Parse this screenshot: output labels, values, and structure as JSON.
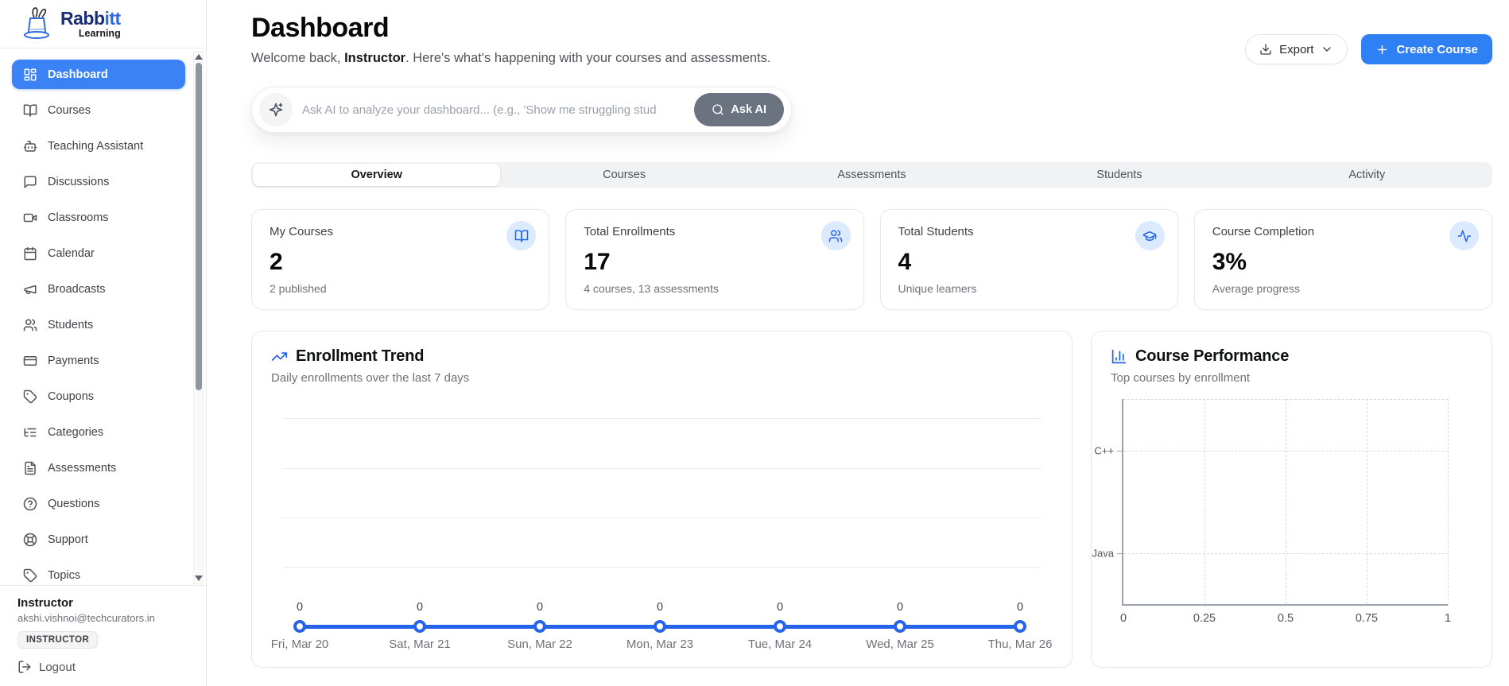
{
  "brand": {
    "name_primary": "Rabb",
    "name_secondary": "itt",
    "tagline": "Learning"
  },
  "sidebar": {
    "items": [
      {
        "label": "Dashboard",
        "icon": "layout-dashboard",
        "active": true
      },
      {
        "label": "Courses",
        "icon": "book-open",
        "active": false
      },
      {
        "label": "Teaching Assistant",
        "icon": "bot",
        "active": false
      },
      {
        "label": "Discussions",
        "icon": "message-square",
        "active": false
      },
      {
        "label": "Classrooms",
        "icon": "video",
        "active": false
      },
      {
        "label": "Calendar",
        "icon": "calendar",
        "active": false
      },
      {
        "label": "Broadcasts",
        "icon": "megaphone",
        "active": false
      },
      {
        "label": "Students",
        "icon": "users",
        "active": false
      },
      {
        "label": "Payments",
        "icon": "credit-card",
        "active": false
      },
      {
        "label": "Coupons",
        "icon": "tag",
        "active": false
      },
      {
        "label": "Categories",
        "icon": "list-tree",
        "active": false
      },
      {
        "label": "Assessments",
        "icon": "file-text",
        "active": false
      },
      {
        "label": "Questions",
        "icon": "help-circle",
        "active": false
      },
      {
        "label": "Support",
        "icon": "life-buoy",
        "active": false
      },
      {
        "label": "Topics",
        "icon": "tag",
        "active": false
      }
    ],
    "user": {
      "name": "Instructor",
      "email": "akshi.vishnoi@techcurators.in",
      "role_badge": "INSTRUCTOR",
      "logout_label": "Logout"
    }
  },
  "header": {
    "title": "Dashboard",
    "welcome_prefix": "Welcome back, ",
    "welcome_name": "Instructor",
    "welcome_suffix": ". Here's what's happening with your courses and assessments.",
    "export_label": "Export",
    "create_course_label": "Create Course"
  },
  "ask_ai": {
    "placeholder": "Ask AI to analyze your dashboard... (e.g., 'Show me struggling stud",
    "button_label": "Ask AI"
  },
  "tabs": [
    {
      "label": "Overview",
      "active": true
    },
    {
      "label": "Courses",
      "active": false
    },
    {
      "label": "Assessments",
      "active": false
    },
    {
      "label": "Students",
      "active": false
    },
    {
      "label": "Activity",
      "active": false
    }
  ],
  "stats": [
    {
      "title": "My Courses",
      "value": "2",
      "subtitle": "2 published",
      "icon": "book-open"
    },
    {
      "title": "Total Enrollments",
      "value": "17",
      "subtitle": "4 courses, 13 assessments",
      "icon": "users"
    },
    {
      "title": "Total Students",
      "value": "4",
      "subtitle": "Unique learners",
      "icon": "graduation-cap"
    },
    {
      "title": "Course Completion",
      "value": "3%",
      "subtitle": "Average progress",
      "icon": "activity"
    }
  ],
  "chart_data": [
    {
      "type": "line",
      "title": "Enrollment Trend",
      "subtitle": "Daily enrollments over the last 7 days",
      "title_icon": "trending-up",
      "x": [
        "Fri, Mar 20",
        "Sat, Mar 21",
        "Sun, Mar 22",
        "Mon, Mar 23",
        "Tue, Mar 24",
        "Wed, Mar 25",
        "Thu, Mar 26"
      ],
      "values": [
        0,
        0,
        0,
        0,
        0,
        0,
        0
      ],
      "point_labels": [
        "0",
        "0",
        "0",
        "0",
        "0",
        "0",
        "0"
      ],
      "line_color": "#2563eb",
      "grid": true,
      "legend": false
    },
    {
      "type": "bar",
      "orientation": "horizontal",
      "title": "Course Performance",
      "subtitle": "Top courses by enrollment",
      "title_icon": "bar-chart",
      "categories": [
        "C++",
        "Java"
      ],
      "values": [
        0,
        0
      ],
      "xlim": [
        0,
        1
      ],
      "xticks": [
        "0",
        "0.25",
        "0.5",
        "0.75",
        "1"
      ],
      "grid": "dashed",
      "legend": false
    }
  ],
  "colors": {
    "primary_blue": "#3b82f6",
    "line_blue": "#2563eb",
    "icon_circle_bg": "#dbeafe",
    "ask_button_gray": "#6b7280",
    "tab_bar_bg": "#f1f2f4"
  }
}
